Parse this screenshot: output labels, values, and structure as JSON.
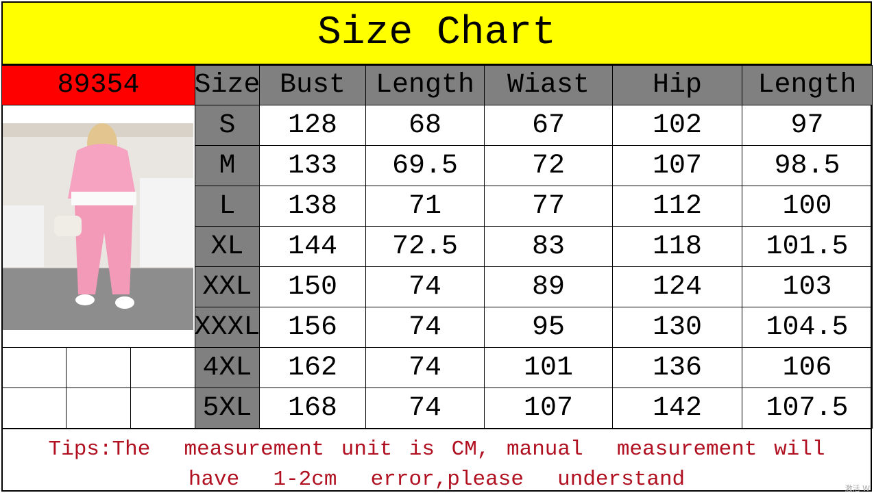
{
  "title": "Size Chart",
  "product_code": "89354",
  "colors": {
    "title_bg": "#ffff00",
    "code_bg": "#ff0000",
    "header_bg": "#808080",
    "tips_text": "#b01020"
  },
  "columns": [
    "Size",
    "Bust",
    "Length",
    "Wiast",
    "Hip",
    "Length"
  ],
  "rows": [
    [
      "S",
      "128",
      "68",
      "67",
      "102",
      "97"
    ],
    [
      "M",
      "133",
      "69.5",
      "72",
      "107",
      "98.5"
    ],
    [
      "L",
      "138",
      "71",
      "77",
      "112",
      "100"
    ],
    [
      "XL",
      "144",
      "72.5",
      "83",
      "118",
      "101.5"
    ],
    [
      "XXL",
      "150",
      "74",
      "89",
      "124",
      "103"
    ],
    [
      "XXXL",
      "156",
      "74",
      "95",
      "130",
      "104.5"
    ],
    [
      "4XL",
      "162",
      "74",
      "101",
      "136",
      "106"
    ],
    [
      "5XL",
      "168",
      "74",
      "107",
      "142",
      "107.5"
    ]
  ],
  "tips": "Tips:The  measurement unit is CM, manual  measurement will  have  1-2cm  error,please  understand",
  "photo": "product-photo-woman-pink-hoodie-set"
}
